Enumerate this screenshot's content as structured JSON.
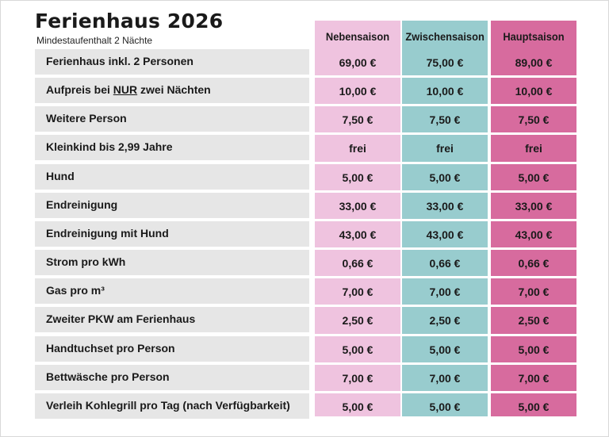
{
  "title": "Ferienhaus 2026",
  "subtitle": "Mindestaufenthalt 2 Nächte",
  "columns": [
    "Nebensaison",
    "Zwischensaison",
    "Hauptsaison"
  ],
  "colors": {
    "nebensaison": "#efc3df",
    "zwischensaison": "#98ccce",
    "hauptsaison": "#d76b9e",
    "label_bg": "#e6e6e6"
  },
  "rows": [
    {
      "label": "Ferienhaus inkl. 2 Personen",
      "values": [
        "69,00 €",
        "75,00 €",
        "89,00 €"
      ]
    },
    {
      "label_pre": "Aufpreis bei ",
      "label_em": "NUR",
      "label_post": " zwei Nächten",
      "values": [
        "10,00 €",
        "10,00 €",
        "10,00 €"
      ]
    },
    {
      "label": "Weitere Person",
      "values": [
        "7,50 €",
        "7,50 €",
        "7,50 €"
      ]
    },
    {
      "label": "Kleinkind bis 2,99 Jahre",
      "values": [
        "frei",
        "frei",
        "frei"
      ]
    },
    {
      "label": "Hund",
      "values": [
        "5,00 €",
        "5,00 €",
        "5,00 €"
      ]
    },
    {
      "label": "Endreinigung",
      "values": [
        "33,00 €",
        "33,00 €",
        "33,00 €"
      ]
    },
    {
      "label": "Endreinigung mit Hund",
      "values": [
        "43,00 €",
        "43,00 €",
        "43,00 €"
      ]
    },
    {
      "label": "Strom pro kWh",
      "values": [
        "0,66 €",
        "0,66 €",
        "0,66 €"
      ]
    },
    {
      "label": "Gas pro m³",
      "values": [
        "7,00 €",
        "7,00 €",
        "7,00 €"
      ]
    },
    {
      "label": "Zweiter PKW am Ferienhaus",
      "values": [
        "2,50 €",
        "2,50 €",
        "2,50 €"
      ]
    },
    {
      "label": "Handtuchset pro Person",
      "values": [
        "5,00 €",
        "5,00 €",
        "5,00 €"
      ]
    },
    {
      "label": "Bettwäsche pro Person",
      "values": [
        "7,00 €",
        "7,00 €",
        "7,00 €"
      ]
    },
    {
      "label": "Verleih Kohlegrill pro Tag (nach Verfügbarkeit)",
      "values": [
        "5,00 €",
        "5,00 €",
        "5,00 €"
      ]
    }
  ]
}
